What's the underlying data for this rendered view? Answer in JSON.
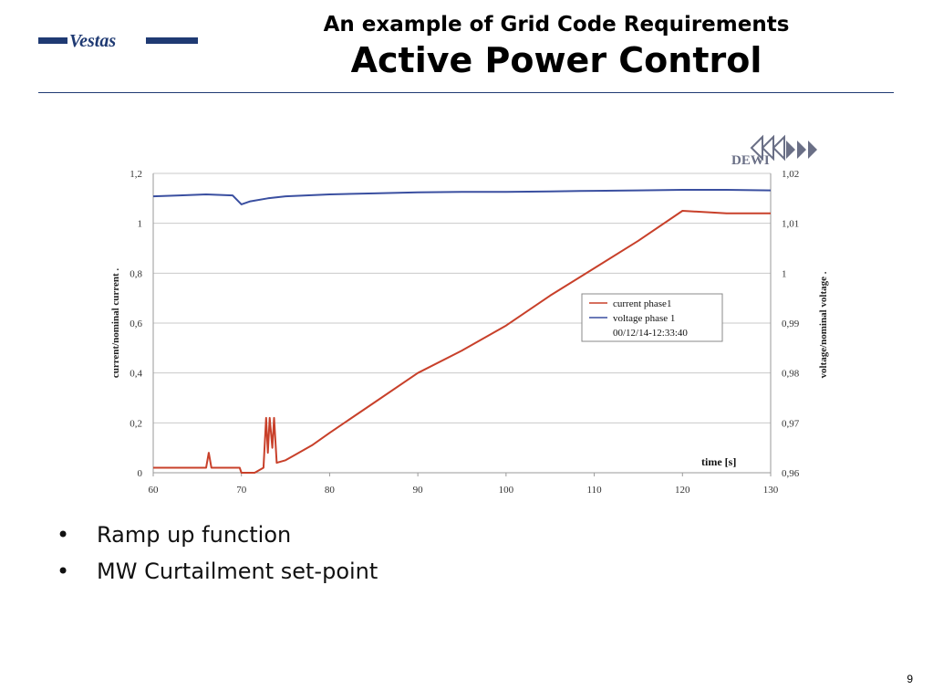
{
  "header": {
    "logo_text": "Vestas",
    "subtitle": "An example of Grid Code Requirements",
    "title": "Active Power Control"
  },
  "chart_data": {
    "type": "line",
    "xlabel": "time [s]",
    "ylabel_left": "current/nominal current .",
    "ylabel_right": "voltage/nominal voltage .",
    "xlim": [
      60,
      130
    ],
    "ylim_left": [
      0,
      1.2
    ],
    "ylim_right": [
      0.96,
      1.02
    ],
    "x_ticks": [
      "60",
      "70",
      "80",
      "90",
      "100",
      "110",
      "120",
      "130"
    ],
    "y_ticks_left": [
      "0",
      "0,2",
      "0,4",
      "0,6",
      "0,8",
      "1",
      "1,2"
    ],
    "y_ticks_right": [
      "0,96",
      "0,97",
      "0,98",
      "0,99",
      "1",
      "1,01",
      "1,02"
    ],
    "grid": true,
    "legend_position": "center-right",
    "logo_text": "DEWI",
    "legend": {
      "entries": [
        "current phase1",
        "voltage phase 1"
      ],
      "timestamp": "00/12/14-12:33:40"
    },
    "series": [
      {
        "name": "current phase1",
        "axis": "left",
        "color": "#c8402a",
        "x": [
          60,
          66,
          66.3,
          66.6,
          67,
          69.8,
          70,
          71.5,
          72.5,
          72.8,
          73.0,
          73.2,
          73.5,
          73.7,
          74,
          75,
          76,
          78,
          80,
          85,
          90,
          95,
          100,
          105,
          110,
          115,
          120,
          125,
          130
        ],
        "y": [
          0.02,
          0.02,
          0.08,
          0.02,
          0.02,
          0.02,
          0.0,
          0.0,
          0.02,
          0.22,
          0.08,
          0.22,
          0.1,
          0.22,
          0.04,
          0.05,
          0.07,
          0.11,
          0.16,
          0.28,
          0.4,
          0.49,
          0.59,
          0.71,
          0.82,
          0.93,
          1.05,
          1.04,
          1.04
        ]
      },
      {
        "name": "voltage phase 1",
        "axis": "right",
        "color": "#3a4fa0",
        "x": [
          60,
          63,
          66,
          69,
          70,
          71,
          73,
          75,
          80,
          85,
          90,
          95,
          100,
          105,
          110,
          115,
          120,
          125,
          130
        ],
        "y": [
          1.0154,
          1.0156,
          1.0158,
          1.0156,
          1.0138,
          1.0144,
          1.015,
          1.0154,
          1.0158,
          1.016,
          1.0162,
          1.0163,
          1.0163,
          1.0164,
          1.0165,
          1.0166,
          1.0167,
          1.0167,
          1.0166
        ]
      }
    ]
  },
  "bullets": [
    "Ramp up function",
    "MW Curtailment set-point"
  ],
  "page_number": "9",
  "colors": {
    "brand_blue": "#1f3a73",
    "current": "#c8402a",
    "voltage": "#3a4fa0"
  }
}
